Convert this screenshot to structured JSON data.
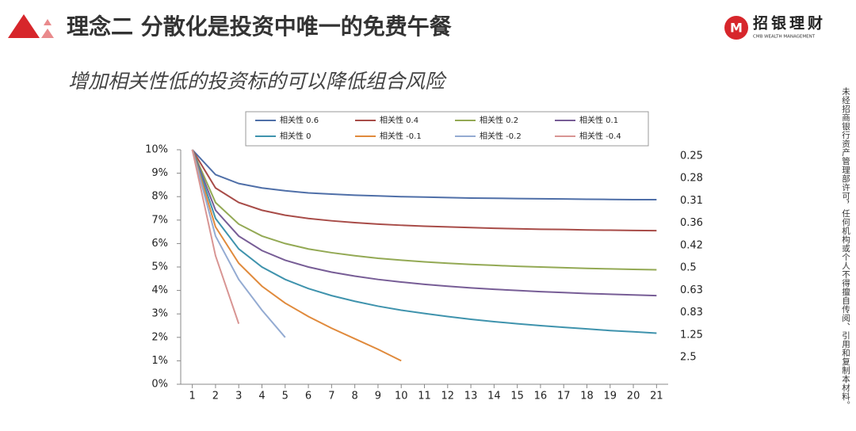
{
  "slide": {
    "title": "理念二 分散化是投资中唯一的免费午餐",
    "logo_text": "招银理财",
    "logo_subtext": "CMB WEALTH MANAGEMENT",
    "notice": "未经招商银行资产管理部许可，任何机构或个人不得擅自传阅、引用和复制本材料。"
  },
  "chart_data": {
    "type": "line",
    "subtitle": "增加相关性低的投资标的可以降低组合风险",
    "x": [
      1,
      2,
      3,
      4,
      5,
      6,
      7,
      8,
      9,
      10,
      11,
      12,
      13,
      14,
      15,
      16,
      17,
      18,
      19,
      20,
      21
    ],
    "xlim": [
      0.5,
      21.5
    ],
    "ylim": [
      0,
      10
    ],
    "yticks": [
      {
        "value": 0,
        "label": "0%"
      },
      {
        "value": 1,
        "label": "1%"
      },
      {
        "value": 2,
        "label": "2%"
      },
      {
        "value": 3,
        "label": "3%"
      },
      {
        "value": 4,
        "label": "4%"
      },
      {
        "value": 5,
        "label": "5%"
      },
      {
        "value": 6,
        "label": "6%"
      },
      {
        "value": 7,
        "label": "7%"
      },
      {
        "value": 8,
        "label": "8%"
      },
      {
        "value": 9,
        "label": "9%"
      },
      {
        "value": 10,
        "label": "10%"
      }
    ],
    "right_labels": [
      "0.25",
      "0.28",
      "0.31",
      "0.36",
      "0.42",
      "0.5",
      "0.63",
      "0.83",
      "1.25",
      "2.5"
    ],
    "legend": "top",
    "series": [
      {
        "name": "相关性 0.6",
        "color": "#4f6fa8",
        "values": [
          10,
          8.94,
          8.56,
          8.37,
          8.25,
          8.16,
          8.11,
          8.06,
          8.03,
          8.0,
          7.98,
          7.96,
          7.94,
          7.93,
          7.92,
          7.91,
          7.9,
          7.89,
          7.88,
          7.87,
          7.87
        ]
      },
      {
        "name": "相关性 0.4",
        "color": "#a84c48",
        "values": [
          10,
          8.37,
          7.75,
          7.42,
          7.21,
          7.07,
          6.97,
          6.89,
          6.83,
          6.78,
          6.74,
          6.71,
          6.68,
          6.65,
          6.63,
          6.61,
          6.6,
          6.58,
          6.57,
          6.56,
          6.55
        ]
      },
      {
        "name": "相关性 0.2",
        "color": "#93a954",
        "values": [
          10,
          7.75,
          6.83,
          6.32,
          6.0,
          5.77,
          5.61,
          5.48,
          5.37,
          5.29,
          5.22,
          5.16,
          5.11,
          5.07,
          5.03,
          5.0,
          4.97,
          4.94,
          4.92,
          4.9,
          4.88
        ]
      },
      {
        "name": "相关性 0.1",
        "color": "#775d96",
        "values": [
          10,
          7.42,
          6.32,
          5.7,
          5.29,
          5.0,
          4.78,
          4.61,
          4.47,
          4.36,
          4.26,
          4.18,
          4.11,
          4.05,
          4.0,
          3.95,
          3.91,
          3.87,
          3.84,
          3.81,
          3.78
        ]
      },
      {
        "name": "相关性 0",
        "color": "#3f93ad",
        "values": [
          10,
          7.07,
          5.77,
          5.0,
          4.47,
          4.08,
          3.78,
          3.54,
          3.33,
          3.16,
          3.02,
          2.89,
          2.77,
          2.67,
          2.58,
          2.5,
          2.43,
          2.36,
          2.29,
          2.24,
          2.18
        ]
      },
      {
        "name": "相关性 -0.1",
        "color": "#e08a3c",
        "values": [
          10,
          6.71,
          5.16,
          4.18,
          3.46,
          2.89,
          2.39,
          1.94,
          1.49,
          1.0,
          null,
          null,
          null,
          null,
          null,
          null,
          null,
          null,
          null,
          null,
          null
        ]
      },
      {
        "name": "相关性 -0.2",
        "color": "#94abd2",
        "values": [
          10,
          6.32,
          4.47,
          3.16,
          2.0,
          null,
          null,
          null,
          null,
          null,
          null,
          null,
          null,
          null,
          null,
          null,
          null,
          null,
          null,
          null,
          null
        ]
      },
      {
        "name": "相关性 -0.4",
        "color": "#d89593",
        "values": [
          10,
          5.48,
          2.58,
          null,
          null,
          null,
          null,
          null,
          null,
          null,
          null,
          null,
          null,
          null,
          null,
          null,
          null,
          null,
          null,
          null,
          null
        ]
      }
    ]
  }
}
